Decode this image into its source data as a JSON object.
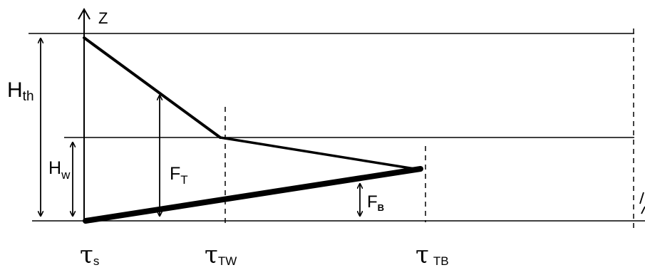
{
  "axis": {
    "z_label": "Z"
  },
  "labels": {
    "h_th_main": "H",
    "h_th_sub": "th",
    "h_w_main": "H",
    "h_w_sub": "w",
    "f_t_main": "F",
    "f_t_sub": "T",
    "f_b_main": "F",
    "f_b_sub": "B"
  },
  "tau_labels": {
    "s_main": "τ",
    "s_sub": "s",
    "tw_main": "τ",
    "tw_sub": "TW",
    "tb_main": "τ",
    "tb_sub": "TB"
  }
}
